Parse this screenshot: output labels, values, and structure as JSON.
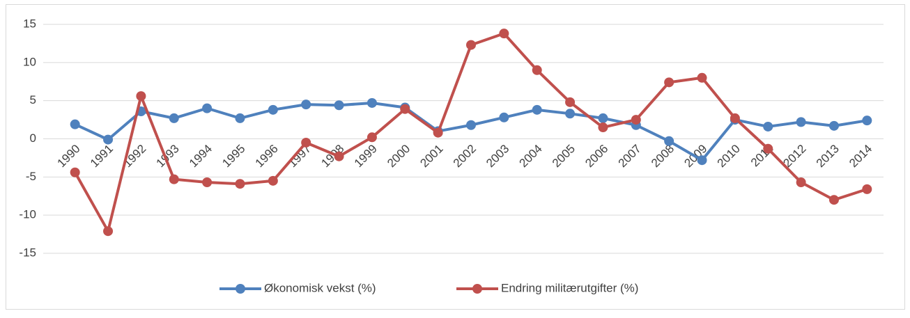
{
  "chart_data": {
    "type": "line",
    "categories": [
      "1990",
      "1991",
      "1992",
      "1993",
      "1994",
      "1995",
      "1996",
      "1997",
      "1998",
      "1999",
      "2000",
      "2001",
      "2002",
      "2003",
      "2004",
      "2005",
      "2006",
      "2007",
      "2008",
      "2009",
      "2010",
      "2011",
      "2012",
      "2013",
      "2014"
    ],
    "series": [
      {
        "name": "Økonomisk vekst (%)",
        "color": "#4f81bd",
        "values": [
          1.9,
          -0.1,
          3.6,
          2.7,
          4.0,
          2.7,
          3.8,
          4.5,
          4.4,
          4.7,
          4.1,
          1.0,
          1.8,
          2.8,
          3.8,
          3.3,
          2.7,
          1.8,
          -0.3,
          -2.8,
          2.5,
          1.6,
          2.2,
          1.7,
          2.4
        ]
      },
      {
        "name": "Endring militærutgifter (%)",
        "color": "#c0504d",
        "values": [
          -4.4,
          -12.1,
          5.6,
          -5.3,
          -5.7,
          -5.9,
          -5.5,
          -0.5,
          -2.3,
          0.2,
          3.9,
          0.8,
          12.3,
          13.8,
          9.0,
          4.8,
          1.5,
          2.5,
          7.4,
          8.0,
          2.7,
          -1.3,
          -5.7,
          -8.0,
          -6.6
        ]
      }
    ],
    "ylim": [
      -15,
      15
    ],
    "yticks": [
      -15,
      -10,
      -5,
      0,
      5,
      10,
      15
    ],
    "grid": true,
    "legend": "bottom"
  }
}
